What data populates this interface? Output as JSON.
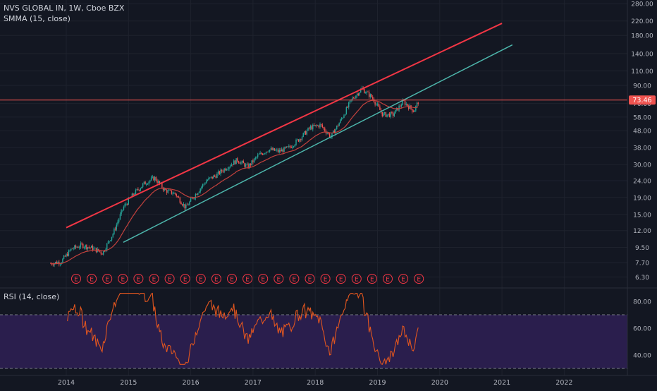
{
  "chart": {
    "symbol_line": "NVS GLOBAL IN, 1W, Cboe BZX",
    "indicator": "SMMA (15, close)",
    "last_price_label": "73.46",
    "last_price": 73.46,
    "price_axis_ticks": [
      280,
      220,
      180,
      140,
      110,
      90,
      70,
      58,
      48,
      38,
      30,
      24,
      19,
      15,
      12,
      9.5,
      7.7,
      6.3
    ],
    "price_axis_labels": [
      "280.00",
      "220.00",
      "180.00",
      "140.00",
      "110.00",
      "90.00",
      "70.00",
      "58.00",
      "48.00",
      "38.00",
      "30.00",
      "24.00",
      "19.00",
      "15.00",
      "12.00",
      "9.50",
      "7.70",
      "6.30"
    ],
    "time_axis_labels": [
      "2014",
      "2015",
      "2016",
      "2017",
      "2018",
      "2019",
      "2020",
      "2021",
      "2022"
    ],
    "earnings_marker_label": "E",
    "earnings_marker_count": 23,
    "colors": {
      "up": "#26a69a",
      "down": "#ef5350",
      "resistance": "#f23645",
      "support": "#4db6ac",
      "smma": "#c2413d",
      "rsi": "#e2561f",
      "rsi_band": "#2a1e4d"
    },
    "trendlines": [
      {
        "name": "resistance",
        "from": {
          "date": "2014-01",
          "price": 12.5
        },
        "to": {
          "date": "2021-01",
          "price": 213
        }
      },
      {
        "name": "support",
        "from": {
          "date": "2014-12",
          "price": 10.2
        },
        "to": {
          "date": "2021-03",
          "price": 158
        }
      }
    ]
  },
  "rsi": {
    "title": "RSI (14, close)",
    "axis_ticks": [
      80,
      60,
      40
    ],
    "axis_labels": [
      "80.00",
      "60.00",
      "40.00"
    ],
    "overbought": 70,
    "oversold": 30
  },
  "chart_data": {
    "type": "candlestick",
    "series": [
      {
        "name": "NVS GLOBAL IN",
        "x": [
          "2013-10",
          "2013-12",
          "2014-02",
          "2014-04",
          "2014-06",
          "2014-08",
          "2014-10",
          "2014-12",
          "2015-02",
          "2015-04",
          "2015-06",
          "2015-08",
          "2015-10",
          "2015-12",
          "2016-02",
          "2016-04",
          "2016-06",
          "2016-08",
          "2016-10",
          "2016-12",
          "2017-02",
          "2017-04",
          "2017-06",
          "2017-08",
          "2017-10",
          "2017-12",
          "2018-02",
          "2018-04",
          "2018-06",
          "2018-08",
          "2018-10",
          "2018-12",
          "2019-02",
          "2019-04",
          "2019-06",
          "2019-08",
          "2019-09"
        ],
        "close": [
          7.6,
          7.8,
          9.3,
          9.8,
          9.4,
          8.8,
          11.5,
          16.5,
          20,
          23,
          25,
          21,
          20,
          16.5,
          20,
          24,
          26,
          29,
          32,
          29,
          34,
          37,
          36,
          38,
          43,
          50,
          52,
          44,
          56,
          74,
          86,
          76,
          60,
          60,
          72,
          63,
          73.46
        ]
      }
    ],
    "ylim": [
      6,
      300
    ],
    "scale": "log"
  }
}
